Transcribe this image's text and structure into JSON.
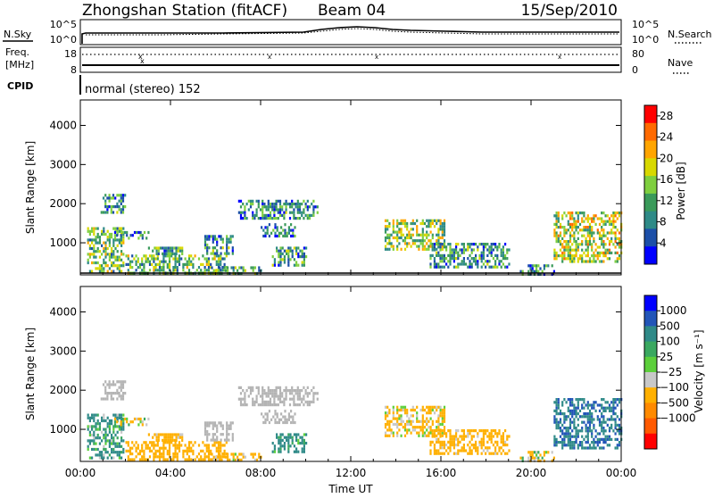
{
  "header": {
    "station": "Zhongshan Station (fitACF)",
    "beam": "Beam 04",
    "date": "15/Sep/2010"
  },
  "summary_panels": {
    "nsky_label": "N.Sky",
    "nsearch_label": "N.Search",
    "freq_label": "Freq.",
    "freq_unit": "[MHz]",
    "nave_label": "Nave",
    "cpid_label": "CPID",
    "cpid_value": "normal (stereo) 152",
    "noise_left_ticks": [
      "10^5",
      "10^0"
    ],
    "noise_right_ticks": [
      "10^5",
      "10^0"
    ],
    "freq_left_ticks": [
      "18",
      "8"
    ],
    "nave_right_ticks": [
      "80",
      "0"
    ]
  },
  "colors": {
    "power_scale": [
      "#0000ff",
      "#1c4fa8",
      "#2e8a87",
      "#3a9a5a",
      "#7fcf3f",
      "#d8d800",
      "#ffa500",
      "#ff6a00",
      "#ff0000"
    ],
    "velocity_scale": [
      "#0000ff",
      "#2255b8",
      "#2f8a88",
      "#3aa860",
      "#5ccf3b",
      "#c8c8c8",
      "#ffb000",
      "#ff8a00",
      "#ff5a00",
      "#ff0000"
    ],
    "ground_scatter": "#b4b4b4"
  },
  "chart_data": [
    {
      "type": "heatmap",
      "title": "",
      "xlabel": "Time UT",
      "ylabel": "Slant Range [km]",
      "x_ticks": [
        "00:00",
        "04:00",
        "08:00",
        "12:00",
        "16:00",
        "20:00",
        "00:00"
      ],
      "y_ticks": [
        "1000",
        "2000",
        "3000",
        "4000"
      ],
      "xlim_hours": [
        0,
        24
      ],
      "ylim_km": [
        180,
        4650
      ],
      "colorbar": {
        "label": "Power [dB]",
        "ticks": [
          "4",
          "8",
          "12",
          "16",
          "20",
          "24",
          "28"
        ],
        "range": [
          0,
          30
        ]
      },
      "echo_regions": [
        {
          "t0": 0.3,
          "t1": 1.9,
          "r0": 300,
          "r1": 1400,
          "value": 14
        },
        {
          "t0": 0.9,
          "t1": 2.0,
          "r0": 1750,
          "r1": 2250,
          "value": 10
        },
        {
          "t0": 1.5,
          "t1": 3.0,
          "r0": 1100,
          "r1": 1300,
          "value": 9
        },
        {
          "t0": 2.0,
          "t1": 6.5,
          "r0": 250,
          "r1": 700,
          "value": 13
        },
        {
          "t0": 3.0,
          "t1": 4.5,
          "r0": 700,
          "r1": 900,
          "value": 11
        },
        {
          "t0": 5.5,
          "t1": 6.8,
          "r0": 700,
          "r1": 1200,
          "value": 10
        },
        {
          "t0": 5.8,
          "t1": 8.0,
          "r0": 200,
          "r1": 400,
          "value": 12
        },
        {
          "t0": 7.0,
          "t1": 10.5,
          "r0": 1650,
          "r1": 2100,
          "value": 9
        },
        {
          "t0": 8.0,
          "t1": 9.5,
          "r0": 1200,
          "r1": 1500,
          "value": 8
        },
        {
          "t0": 8.5,
          "t1": 10.0,
          "r0": 400,
          "r1": 900,
          "value": 10
        },
        {
          "t0": 13.5,
          "t1": 16.2,
          "r0": 850,
          "r1": 1600,
          "value": 15
        },
        {
          "t0": 15.5,
          "t1": 19.0,
          "r0": 350,
          "r1": 1000,
          "value": 10
        },
        {
          "t0": 19.5,
          "t1": 21.0,
          "r0": 200,
          "r1": 450,
          "value": 8
        },
        {
          "t0": 21.0,
          "t1": 24.0,
          "r0": 500,
          "r1": 1800,
          "value": 17
        }
      ]
    },
    {
      "type": "heatmap",
      "title": "",
      "xlabel": "Time UT",
      "ylabel": "Slant Range [km]",
      "x_ticks": [
        "00:00",
        "04:00",
        "08:00",
        "12:00",
        "16:00",
        "20:00",
        "00:00"
      ],
      "y_ticks": [
        "1000",
        "2000",
        "3000",
        "4000"
      ],
      "xlim_hours": [
        0,
        24
      ],
      "ylim_km": [
        180,
        4650
      ],
      "colorbar": {
        "label": "Velocity [m s⁻¹]",
        "ticks": [
          "1000",
          "500",
          "100",
          "25",
          "−25",
          "−100",
          "−500",
          "−1000"
        ],
        "range": [
          -1000,
          1000
        ]
      },
      "echo_regions": [
        {
          "t0": 0.3,
          "t1": 1.9,
          "r0": 300,
          "r1": 1400,
          "value": 150
        },
        {
          "t0": 0.9,
          "t1": 2.0,
          "r0": 1750,
          "r1": 2250,
          "value": 0
        },
        {
          "t0": 1.5,
          "t1": 3.0,
          "r0": 1100,
          "r1": 1300,
          "value": -120
        },
        {
          "t0": 2.0,
          "t1": 6.5,
          "r0": 250,
          "r1": 700,
          "value": -300
        },
        {
          "t0": 3.0,
          "t1": 4.5,
          "r0": 700,
          "r1": 900,
          "value": -250
        },
        {
          "t0": 5.5,
          "t1": 6.8,
          "r0": 700,
          "r1": 1200,
          "value": 0
        },
        {
          "t0": 5.8,
          "t1": 8.0,
          "r0": 200,
          "r1": 400,
          "value": -200
        },
        {
          "t0": 7.0,
          "t1": 10.5,
          "r0": 1650,
          "r1": 2100,
          "value": 0
        },
        {
          "t0": 8.0,
          "t1": 9.5,
          "r0": 1200,
          "r1": 1500,
          "value": 0
        },
        {
          "t0": 8.5,
          "t1": 10.0,
          "r0": 400,
          "r1": 900,
          "value": 200
        },
        {
          "t0": 13.5,
          "t1": 16.2,
          "r0": 850,
          "r1": 1600,
          "value": -180
        },
        {
          "t0": 15.5,
          "t1": 19.0,
          "r0": 350,
          "r1": 1000,
          "value": -250
        },
        {
          "t0": 19.5,
          "t1": 21.0,
          "r0": 200,
          "r1": 450,
          "value": -150
        },
        {
          "t0": 21.0,
          "t1": 24.0,
          "r0": 500,
          "r1": 1800,
          "value": 450
        }
      ]
    }
  ]
}
